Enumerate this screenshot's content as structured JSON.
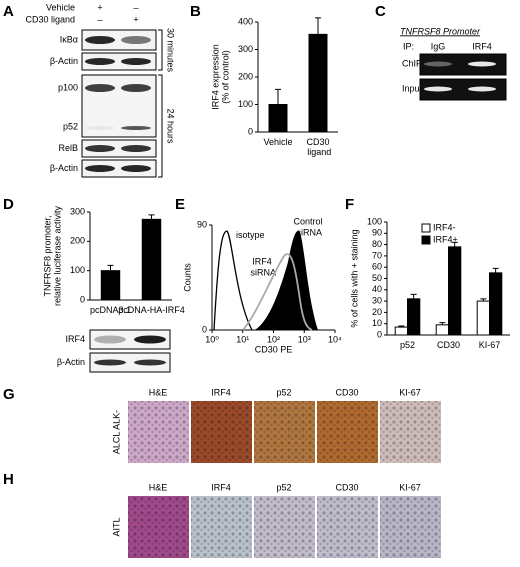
{
  "panel_labels": [
    "A",
    "B",
    "C",
    "D",
    "E",
    "F",
    "G",
    "H"
  ],
  "blot_a": {
    "treatments": [
      {
        "name": "Vehicle",
        "lanes": [
          "+",
          "–"
        ]
      },
      {
        "name": "CD30 ligand",
        "lanes": [
          "–",
          "+"
        ]
      }
    ],
    "rows": [
      "IκBα",
      "β-Actin",
      "p100",
      "p52",
      "RelB",
      "β-Actin"
    ],
    "timepoints": [
      "30 minutes",
      "24 hours"
    ]
  },
  "chip_c": {
    "title": "TNFRSF8 Promoter",
    "ip": "IP:",
    "lanes": [
      "IgG",
      "IRF4"
    ],
    "rows": [
      "ChIP",
      "Input"
    ]
  },
  "blot_d": {
    "rows": [
      "IRF4",
      "β-Actin"
    ]
  },
  "histology": {
    "stains": [
      "H&E",
      "IRF4",
      "p52",
      "CD30",
      "KI-67"
    ],
    "rows": [
      "ALCL ALK-",
      "AITL"
    ]
  },
  "chart_data": [
    {
      "type": "bar",
      "ylabel": [
        "IRF4 expression",
        "(% of control)"
      ],
      "categories": [
        "Vehicle",
        "CD30 ligand"
      ],
      "values": [
        100,
        355
      ],
      "errors": [
        55,
        60
      ],
      "color": "#000000",
      "ylim": [
        0,
        400
      ],
      "yticks": [
        0,
        100,
        200,
        300,
        400
      ]
    },
    {
      "type": "bar",
      "ylabel": [
        "TNFRSF8 promoter,",
        "relative luciferase activity"
      ],
      "categories": [
        "pcDNA3.1",
        "pcDNA-HA-IRF4"
      ],
      "values": [
        100,
        275
      ],
      "errors": [
        18,
        15
      ],
      "color": "#000000",
      "ylim": [
        0,
        300
      ],
      "yticks": [
        0,
        100,
        200,
        300
      ]
    },
    {
      "type": "flow",
      "xlabel": "CD30 PE",
      "ylabel": [
        "Counts"
      ],
      "xscale": "log",
      "xlim": [
        1,
        10000
      ],
      "xticks": [
        {
          "value": 1,
          "label": "10⁰"
        },
        {
          "value": 10,
          "label": "10¹"
        },
        {
          "value": 100,
          "label": "10²"
        },
        {
          "value": 1000,
          "label": "10³"
        },
        {
          "value": 10000,
          "label": "10⁴"
        }
      ],
      "ylim": [
        0,
        90
      ],
      "yticks": [
        0,
        90
      ],
      "annotations": [
        "isotype",
        "IRF4 siRNA",
        "Control siRNA"
      ]
    },
    {
      "type": "bar",
      "ylabel": [
        "% of cells with + staining"
      ],
      "categories": [
        "p52",
        "CD30",
        "KI-67"
      ],
      "series": [
        {
          "name": "IRF4-",
          "color": "#ffffff",
          "values": [
            7,
            9,
            30
          ],
          "errors": [
            1,
            2,
            2
          ]
        },
        {
          "name": "IRF4+",
          "color": "#000000",
          "values": [
            32,
            78,
            55
          ],
          "errors": [
            4,
            4,
            4
          ]
        }
      ],
      "ylim": [
        0,
        100
      ],
      "yticks": [
        0,
        10,
        20,
        30,
        40,
        50,
        60,
        70,
        80,
        90,
        100
      ],
      "legend": "upper left"
    }
  ]
}
